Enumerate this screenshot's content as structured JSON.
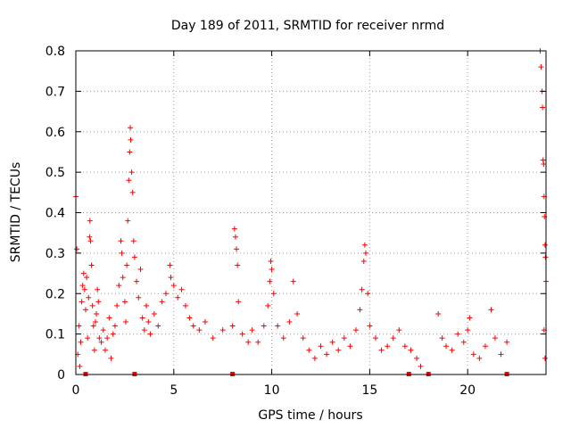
{
  "chart_data": {
    "type": "scatter",
    "title": "Day 189 of 2011, SRMTID for receiver nrmd",
    "xlabel": "GPS time / hours",
    "ylabel": "SRMTID / TECUs",
    "xlim": [
      0,
      24
    ],
    "ylim": [
      0,
      0.8
    ],
    "x_ticks": [
      0,
      5,
      10,
      15,
      20
    ],
    "y_ticks": [
      0,
      0.1,
      0.2,
      0.3,
      0.4,
      0.5,
      0.6,
      0.7,
      0.8
    ],
    "x_tick_labels": [
      "0",
      "5",
      "10",
      "15",
      "20"
    ],
    "y_tick_labels": [
      "0",
      "0.1",
      "0.2",
      "0.3",
      "0.4",
      "0.5",
      "0.6",
      "0.7",
      "0.8"
    ],
    "grid": true,
    "marker": "+",
    "color": "#ff0000",
    "series": [
      {
        "name": "SRMTID",
        "points": [
          [
            0.0,
            0.44
          ],
          [
            0.05,
            0.31
          ],
          [
            0.1,
            0.05
          ],
          [
            0.15,
            0.12
          ],
          [
            0.2,
            0.02
          ],
          [
            0.25,
            0.08
          ],
          [
            0.3,
            0.18
          ],
          [
            0.35,
            0.22
          ],
          [
            0.4,
            0.25
          ],
          [
            0.45,
            0.21
          ],
          [
            0.5,
            0.16
          ],
          [
            0.55,
            0.24
          ],
          [
            0.6,
            0.09
          ],
          [
            0.65,
            0.19
          ],
          [
            0.7,
            0.34
          ],
          [
            0.72,
            0.38
          ],
          [
            0.75,
            0.33
          ],
          [
            0.8,
            0.27
          ],
          [
            0.85,
            0.17
          ],
          [
            0.9,
            0.12
          ],
          [
            0.95,
            0.06
          ],
          [
            1.0,
            0.13
          ],
          [
            1.05,
            0.15
          ],
          [
            1.1,
            0.21
          ],
          [
            1.15,
            0.18
          ],
          [
            1.2,
            0.09
          ],
          [
            1.3,
            0.08
          ],
          [
            1.4,
            0.11
          ],
          [
            1.5,
            0.06
          ],
          [
            1.6,
            0.09
          ],
          [
            1.7,
            0.14
          ],
          [
            1.8,
            0.04
          ],
          [
            1.9,
            0.1
          ],
          [
            2.0,
            0.12
          ],
          [
            2.1,
            0.17
          ],
          [
            2.2,
            0.22
          ],
          [
            2.3,
            0.33
          ],
          [
            2.35,
            0.3
          ],
          [
            2.4,
            0.24
          ],
          [
            2.5,
            0.18
          ],
          [
            2.55,
            0.13
          ],
          [
            2.6,
            0.27
          ],
          [
            2.65,
            0.38
          ],
          [
            2.7,
            0.48
          ],
          [
            2.75,
            0.55
          ],
          [
            2.78,
            0.61
          ],
          [
            2.8,
            0.58
          ],
          [
            2.85,
            0.5
          ],
          [
            2.9,
            0.45
          ],
          [
            2.95,
            0.33
          ],
          [
            3.0,
            0.29
          ],
          [
            3.1,
            0.23
          ],
          [
            3.2,
            0.19
          ],
          [
            3.3,
            0.26
          ],
          [
            3.4,
            0.14
          ],
          [
            3.5,
            0.11
          ],
          [
            3.6,
            0.17
          ],
          [
            3.7,
            0.13
          ],
          [
            3.8,
            0.1
          ],
          [
            4.0,
            0.15
          ],
          [
            4.2,
            0.12
          ],
          [
            4.4,
            0.18
          ],
          [
            4.6,
            0.2
          ],
          [
            4.8,
            0.27
          ],
          [
            4.85,
            0.24
          ],
          [
            5.0,
            0.22
          ],
          [
            5.2,
            0.19
          ],
          [
            5.4,
            0.21
          ],
          [
            5.6,
            0.17
          ],
          [
            5.8,
            0.14
          ],
          [
            6.0,
            0.12
          ],
          [
            6.3,
            0.11
          ],
          [
            6.6,
            0.13
          ],
          [
            7.0,
            0.09
          ],
          [
            7.5,
            0.11
          ],
          [
            8.0,
            0.12
          ],
          [
            8.1,
            0.36
          ],
          [
            8.15,
            0.34
          ],
          [
            8.2,
            0.31
          ],
          [
            8.25,
            0.27
          ],
          [
            8.3,
            0.18
          ],
          [
            8.5,
            0.1
          ],
          [
            8.8,
            0.08
          ],
          [
            9.0,
            0.11
          ],
          [
            9.3,
            0.08
          ],
          [
            9.6,
            0.12
          ],
          [
            9.8,
            0.17
          ],
          [
            9.9,
            0.23
          ],
          [
            9.95,
            0.28
          ],
          [
            10.0,
            0.26
          ],
          [
            10.1,
            0.2
          ],
          [
            10.3,
            0.12
          ],
          [
            10.6,
            0.09
          ],
          [
            10.9,
            0.13
          ],
          [
            11.1,
            0.23
          ],
          [
            11.3,
            0.15
          ],
          [
            11.6,
            0.09
          ],
          [
            11.9,
            0.06
          ],
          [
            12.2,
            0.04
          ],
          [
            12.5,
            0.07
          ],
          [
            12.8,
            0.05
          ],
          [
            13.1,
            0.08
          ],
          [
            13.4,
            0.06
          ],
          [
            13.7,
            0.09
          ],
          [
            14.0,
            0.07
          ],
          [
            14.3,
            0.11
          ],
          [
            14.5,
            0.16
          ],
          [
            14.6,
            0.21
          ],
          [
            14.7,
            0.28
          ],
          [
            14.75,
            0.32
          ],
          [
            14.8,
            0.3
          ],
          [
            14.9,
            0.2
          ],
          [
            15.0,
            0.12
          ],
          [
            15.3,
            0.09
          ],
          [
            15.6,
            0.06
          ],
          [
            15.9,
            0.07
          ],
          [
            16.2,
            0.09
          ],
          [
            16.5,
            0.11
          ],
          [
            16.8,
            0.07
          ],
          [
            17.1,
            0.06
          ],
          [
            17.4,
            0.04
          ],
          [
            17.6,
            0.02
          ],
          [
            18.5,
            0.15
          ],
          [
            18.7,
            0.09
          ],
          [
            18.9,
            0.07
          ],
          [
            19.2,
            0.06
          ],
          [
            19.5,
            0.1
          ],
          [
            19.8,
            0.08
          ],
          [
            20.0,
            0.11
          ],
          [
            20.1,
            0.14
          ],
          [
            20.3,
            0.05
          ],
          [
            20.6,
            0.04
          ],
          [
            20.9,
            0.07
          ],
          [
            21.2,
            0.16
          ],
          [
            21.4,
            0.09
          ],
          [
            21.7,
            0.05
          ],
          [
            22.0,
            0.08
          ],
          [
            23.7,
            0.8
          ],
          [
            23.75,
            0.76
          ],
          [
            23.8,
            0.7
          ],
          [
            23.82,
            0.66
          ],
          [
            23.85,
            0.53
          ],
          [
            23.88,
            0.52
          ],
          [
            23.9,
            0.44
          ],
          [
            23.92,
            0.39
          ],
          [
            23.95,
            0.32
          ],
          [
            23.97,
            0.29
          ],
          [
            24.0,
            0.23
          ],
          [
            23.9,
            0.11
          ],
          [
            23.95,
            0.04
          ]
        ]
      }
    ],
    "zero_markers_x": [
      0.5,
      3.0,
      8.0,
      17.0,
      18.0,
      22.0
    ]
  }
}
